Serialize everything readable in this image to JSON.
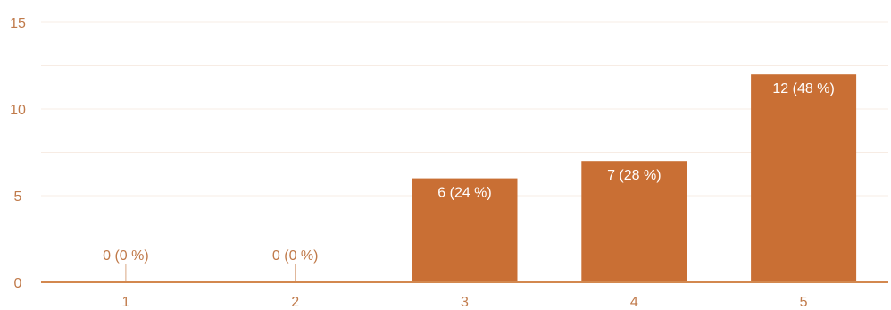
{
  "colors": {
    "bar": "#c96f34",
    "axis": "#d3884f",
    "grid": "#f7ece4",
    "tick_text": "#c07a4a",
    "label_inside": "#ffffff"
  },
  "chart_data": {
    "type": "bar",
    "categories": [
      "1",
      "2",
      "3",
      "4",
      "5"
    ],
    "values": [
      0,
      0,
      6,
      7,
      12
    ],
    "data_labels": [
      "0 (0 %)",
      "0 (0 %)",
      "6 (24 %)",
      "7 (28 %)",
      "12 (48 %)"
    ],
    "yticks": [
      "0",
      "5",
      "10",
      "15"
    ],
    "ylim": [
      0,
      15
    ],
    "title": "",
    "xlabel": "",
    "ylabel": "",
    "grid": true
  }
}
